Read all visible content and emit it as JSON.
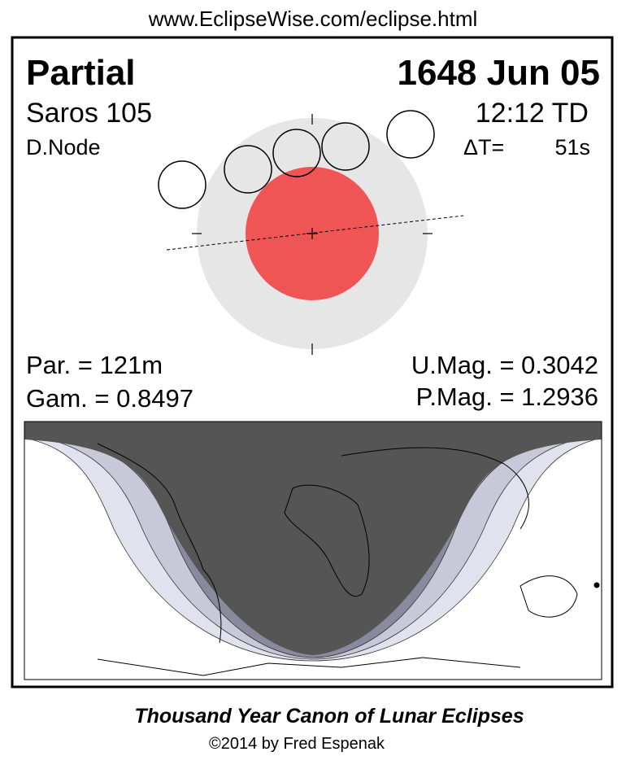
{
  "header": {
    "url": "www.EclipseWise.com/eclipse.html"
  },
  "eclipse": {
    "type": "Partial",
    "date": "1648 Jun 05",
    "saros": "Saros 105",
    "time": "12:12 TD",
    "node": "D.Node",
    "delta_t_label": "ΔT=",
    "delta_t": "51s"
  },
  "parameters": {
    "par": "Par. = 121m",
    "umag": "U.Mag. = 0.3042",
    "gam": "Gam. = 0.8497",
    "pmag": "P.Mag. = 1.2936"
  },
  "footer": {
    "title": "Thousand Year Canon of Lunar Eclipses",
    "copyright": "©2014 by Fred Espenak"
  }
}
